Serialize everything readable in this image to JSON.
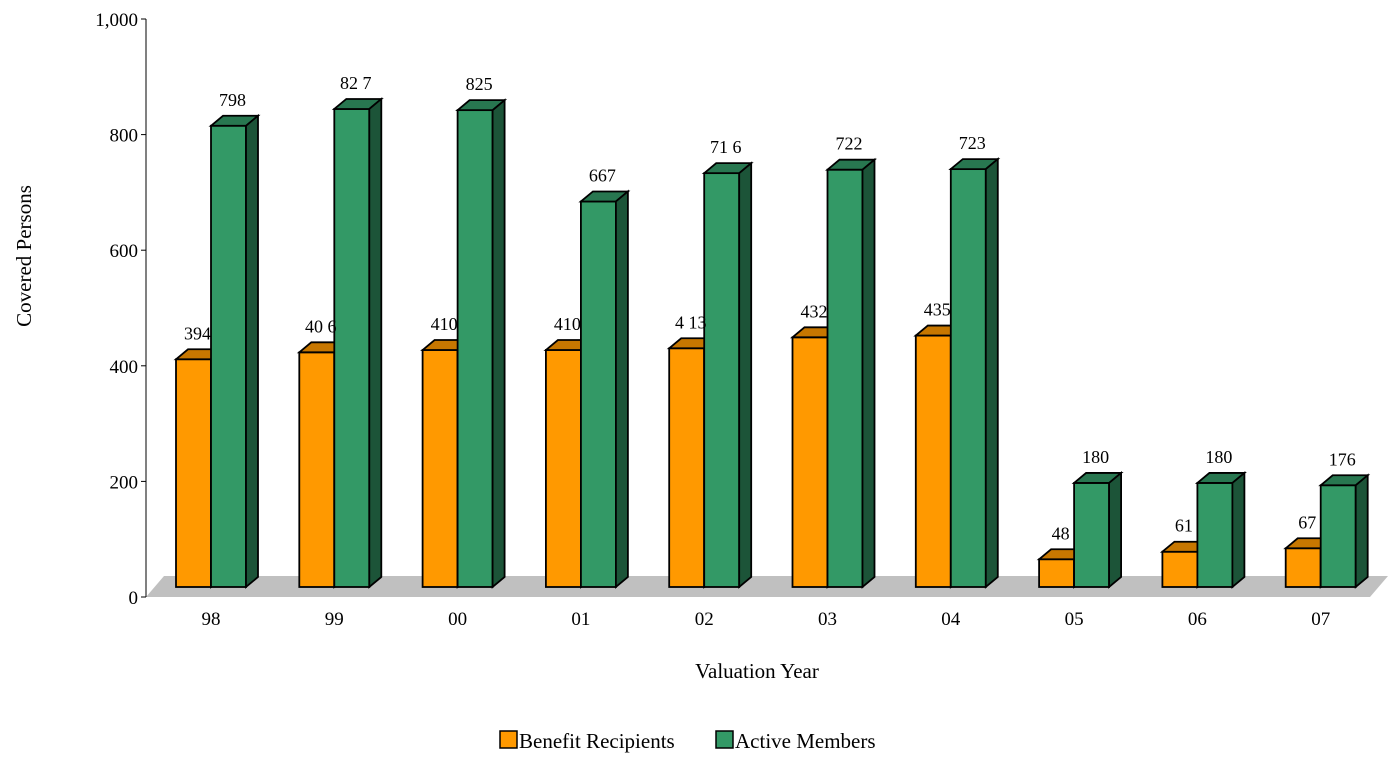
{
  "chart_data": {
    "type": "bar",
    "title": "",
    "xlabel": "Valuation Year",
    "ylabel": "Covered Persons",
    "categories": [
      "98",
      "99",
      "00",
      "01",
      "02",
      "03",
      "04",
      "05",
      "06",
      "07"
    ],
    "series": [
      {
        "name": "Benefit Recipients",
        "values": [
          394,
          406,
          410,
          410,
          413,
          432,
          435,
          48,
          61,
          67
        ],
        "labels": [
          "394",
          "40 6",
          "410",
          "410",
          "4 13",
          "432",
          "435",
          "48",
          "61",
          "67"
        ],
        "color": "#ff9900"
      },
      {
        "name": "Active Members",
        "values": [
          798,
          827,
          825,
          667,
          716,
          722,
          723,
          180,
          180,
          176
        ],
        "labels": [
          "798",
          "82 7",
          "825",
          "667",
          "71 6",
          "722",
          "723",
          "180",
          "180",
          "176"
        ],
        "color": "#339966"
      }
    ],
    "y_ticks": [
      "0",
      "200",
      "400",
      "600",
      "800",
      "1,000"
    ],
    "ylim": [
      0,
      1000
    ],
    "grid": false,
    "legend_position": "bottom-center",
    "style": "3d-bars"
  }
}
